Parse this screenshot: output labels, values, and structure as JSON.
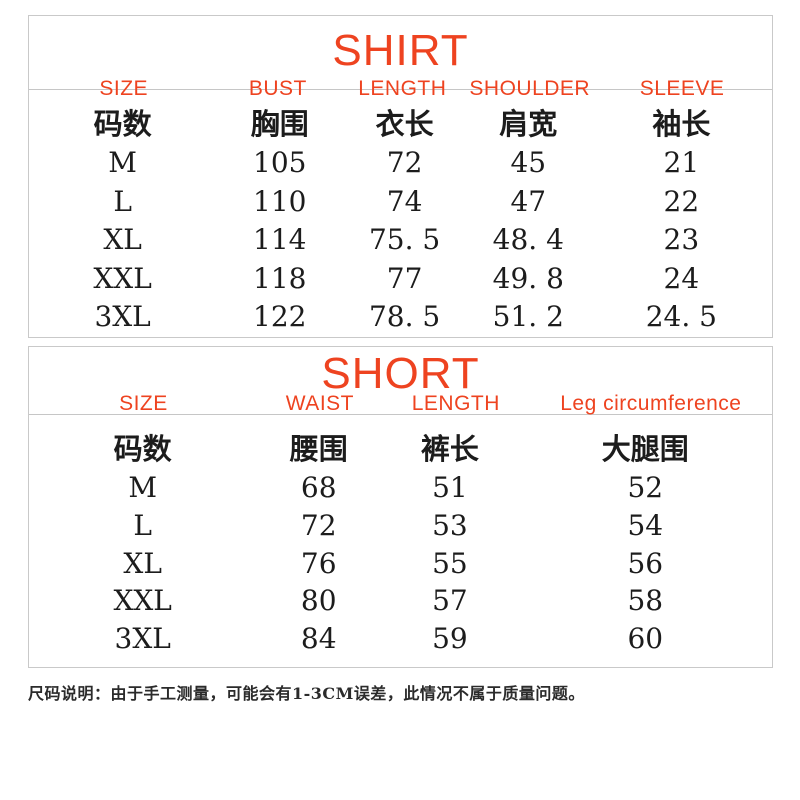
{
  "colors": {
    "accent_red": "#ee4320",
    "text_black": "#1c1c1c",
    "border_gray": "#c9c9c9",
    "background": "#ffffff"
  },
  "shirt_table": {
    "title": "SHIRT",
    "headers_en": [
      "SIZE",
      "BUST",
      "LENGTH",
      "SHOULDER",
      "SLEEVE"
    ],
    "headers_zh": [
      "码数",
      "胸围",
      "衣长",
      "肩宽",
      "袖长"
    ],
    "rows": [
      [
        "M",
        "105",
        "72",
        "45",
        "21"
      ],
      [
        "L",
        "110",
        "74",
        "47",
        "22"
      ],
      [
        "XL",
        "114",
        "75. 5",
        "48. 4",
        "23"
      ],
      [
        "XXL",
        "118",
        "77",
        "49. 8",
        "24"
      ],
      [
        "3XL",
        "122",
        "78. 5",
        "51. 2",
        "24. 5"
      ]
    ]
  },
  "short_table": {
    "title": "SHORT",
    "headers_en": [
      "SIZE",
      "WAIST",
      "LENGTH",
      "Leg circumference"
    ],
    "headers_zh": [
      "码数",
      "腰围",
      "裤长",
      "大腿围"
    ],
    "rows": [
      [
        "M",
        "68",
        "51",
        "52"
      ],
      [
        "L",
        "72",
        "53",
        "54"
      ],
      [
        "XL",
        "76",
        "55",
        "56"
      ],
      [
        "XXL",
        "80",
        "57",
        "58"
      ],
      [
        "3XL",
        "84",
        "59",
        "60"
      ]
    ]
  },
  "footnote": "尺码说明：由于手工测量，可能会有1-3CM误差，此情况不属于质量问题。"
}
